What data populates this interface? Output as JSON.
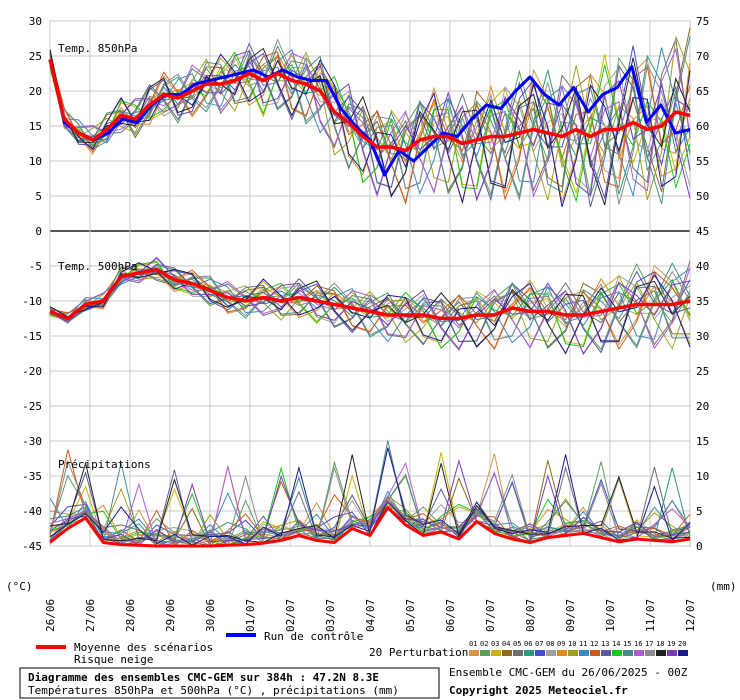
{
  "chart_data": {
    "type": "line",
    "panels": [
      {
        "id": "t850",
        "title": "Temp. 850hPa"
      },
      {
        "id": "t500",
        "title": "Temp. 500hPa"
      },
      {
        "id": "precip",
        "title": "Précipitations"
      }
    ],
    "left_axis": {
      "unit": "(°C)",
      "ticks": [
        30,
        25,
        20,
        15,
        10,
        5,
        0,
        -5,
        -10,
        -15,
        -20,
        -25,
        -30,
        -35,
        -40,
        -45
      ],
      "ylim": [
        -45,
        30
      ]
    },
    "right_axis": {
      "unit": "(mm)",
      "ticks": [
        75,
        70,
        65,
        60,
        55,
        50,
        45,
        40,
        35,
        30,
        25,
        20,
        15,
        10,
        5,
        0
      ],
      "ylim": [
        0,
        75
      ]
    },
    "x_dates": [
      "26/06",
      "27/06",
      "28/06",
      "29/06",
      "30/06",
      "01/07",
      "02/07",
      "03/07",
      "04/07",
      "05/07",
      "06/07",
      "07/07",
      "08/07",
      "09/07",
      "10/07",
      "11/07",
      "12/07"
    ],
    "grid": true,
    "series": [
      {
        "name": "Moyenne des scénarios",
        "color": "#ff0000",
        "t850": [
          24.5,
          16.0,
          14.0,
          13.0,
          14.5,
          16.5,
          16.0,
          18.0,
          19.5,
          19.0,
          20.0,
          21.0,
          21.0,
          21.5,
          22.5,
          21.5,
          22.5,
          21.5,
          21.0,
          20.0,
          17.0,
          15.5,
          13.5,
          12.0,
          12.0,
          11.5,
          13.0,
          13.5,
          13.5,
          12.5,
          13.0,
          13.5,
          13.5,
          14.0,
          14.5,
          14.0,
          13.5,
          14.5,
          13.5,
          14.5,
          14.5,
          15.5,
          14.5,
          15.0,
          17.0,
          16.5
        ],
        "t500": [
          -11.5,
          -12.5,
          -10.5,
          -10.0,
          -6.5,
          -6.0,
          -5.5,
          -7.0,
          -7.5,
          -8.5,
          -9.5,
          -10.0,
          -9.5,
          -10.0,
          -9.5,
          -10.0,
          -10.5,
          -11.0,
          -11.5,
          -12.0,
          -12.0,
          -12.0,
          -12.5,
          -12.5,
          -12.0,
          -12.0,
          -11.0,
          -11.5,
          -11.5,
          -12.0,
          -12.0,
          -11.5,
          -11.0,
          -10.5,
          -10.5,
          -10.5,
          -10.0
        ],
        "precip": [
          0.5,
          2.5,
          4.0,
          0.5,
          0.2,
          0.1,
          0.0,
          0.0,
          0.0,
          0.0,
          0.1,
          0.2,
          0.4,
          0.8,
          1.5,
          0.8,
          0.5,
          2.5,
          1.5,
          5.5,
          3.0,
          1.5,
          2.0,
          1.0,
          3.5,
          1.8,
          1.0,
          0.5,
          1.2,
          1.5,
          1.8,
          1.2,
          0.6,
          1.0,
          0.8,
          0.6,
          1.0
        ]
      },
      {
        "name": "Run de contrôle",
        "color": "#0000ff",
        "t850": [
          24.5,
          15.5,
          14.0,
          13.0,
          14.0,
          16.0,
          15.5,
          18.0,
          19.5,
          19.5,
          21.0,
          21.5,
          22.0,
          22.5,
          23.0,
          22.0,
          23.0,
          22.0,
          21.5,
          21.5,
          17.5,
          15.0,
          13.0,
          8.0,
          11.5,
          10.0,
          12.0,
          14.0,
          13.5,
          16.0,
          18.0,
          17.5,
          20.0,
          22.0,
          19.5,
          18.0,
          20.5,
          17.0,
          19.5,
          20.5,
          23.5,
          15.5,
          18.0,
          14.0,
          14.5
        ],
        "t500": [],
        "precip": []
      }
    ],
    "legend": {
      "mean": "Moyenne des scénarios",
      "snow": "Risque neige",
      "control": "Run de contrôle",
      "perturbations": "20 Perturbations",
      "pert_ids": [
        "01",
        "02",
        "03",
        "04",
        "05",
        "06",
        "07",
        "08",
        "09",
        "10",
        "11",
        "12",
        "13",
        "14",
        "15",
        "16",
        "17",
        "18",
        "19",
        "20"
      ],
      "pert_colors": [
        "#d8924a",
        "#5aa05a",
        "#c8b400",
        "#8a6a1e",
        "#6e6e6e",
        "#2a9a7a",
        "#4a4ad0",
        "#a0a0a0",
        "#e08a1e",
        "#a0a020",
        "#3a8ac0",
        "#d05a1a",
        "#5a5aa0",
        "#18c818",
        "#4a8a8a",
        "#b05ad8",
        "#8a8a8a",
        "#202020",
        "#7a3ac0",
        "#1a1a8a"
      ]
    }
  },
  "footer": {
    "title": "Diagramme des ensembles CMC-GEM sur 384h : 47.2N 8.3E",
    "subtitle": "Températures 850hPa et 500hPa (°C) , précipitations (mm)",
    "run_info": "Ensemble CMC-GEM du 26/06/2025 - 00Z",
    "copyright": "Copyright 2025 Meteociel.fr"
  }
}
